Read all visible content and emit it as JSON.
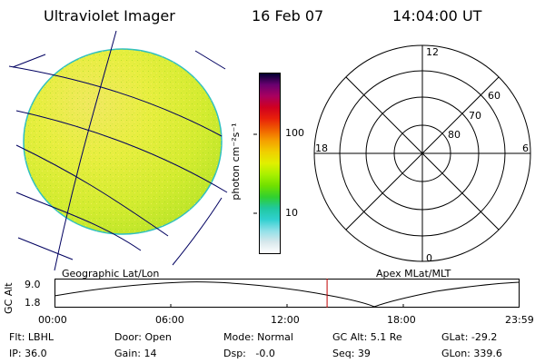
{
  "header": {
    "instrument": "Ultraviolet Imager",
    "date": "16 Feb 07",
    "time": "14:04:00 UT"
  },
  "colorbar": {
    "unit_label": "photon cm⁻²s⁻¹",
    "ticks": [
      "100",
      "10"
    ],
    "colors": [
      "#000030",
      "#6a0070",
      "#a80060",
      "#d00020",
      "#e8200a",
      "#f06000",
      "#f5a000",
      "#f0d000",
      "#e0f000",
      "#a8f000",
      "#70e000",
      "#30d030",
      "#20c8a0",
      "#30d0d0",
      "#90e0e8",
      "#d8e8ec",
      "#ffffff"
    ]
  },
  "left_panel": {
    "caption": "Geographic Lat/Lon"
  },
  "right_panel": {
    "caption": "Apex MLat/MLT",
    "mlt_labels": {
      "top": "12",
      "right": "6",
      "bottom": "0",
      "left": "18"
    },
    "mlat_labels": [
      "60",
      "70",
      "80"
    ]
  },
  "altitude_plot": {
    "ylabel": "GC Alt",
    "yticks": [
      "9.0",
      "1.8"
    ],
    "xticks": [
      "00:00",
      "06:00",
      "12:00",
      "18:00",
      "23:59"
    ],
    "current_marker_time": "14:04",
    "marker_color": "#c00000"
  },
  "footer": {
    "flt": "Flt: LBHL",
    "ip": "IP: 36.0",
    "door": "Door: Open",
    "gain": "Gain: 14",
    "mode": "Mode: Normal",
    "dsp": "Dsp:   -0.0",
    "gc_alt": "GC Alt: 5.1 Re",
    "seq": "Seq: 39",
    "glat": "GLat: -29.2",
    "glon": "GLon: 339.6"
  }
}
